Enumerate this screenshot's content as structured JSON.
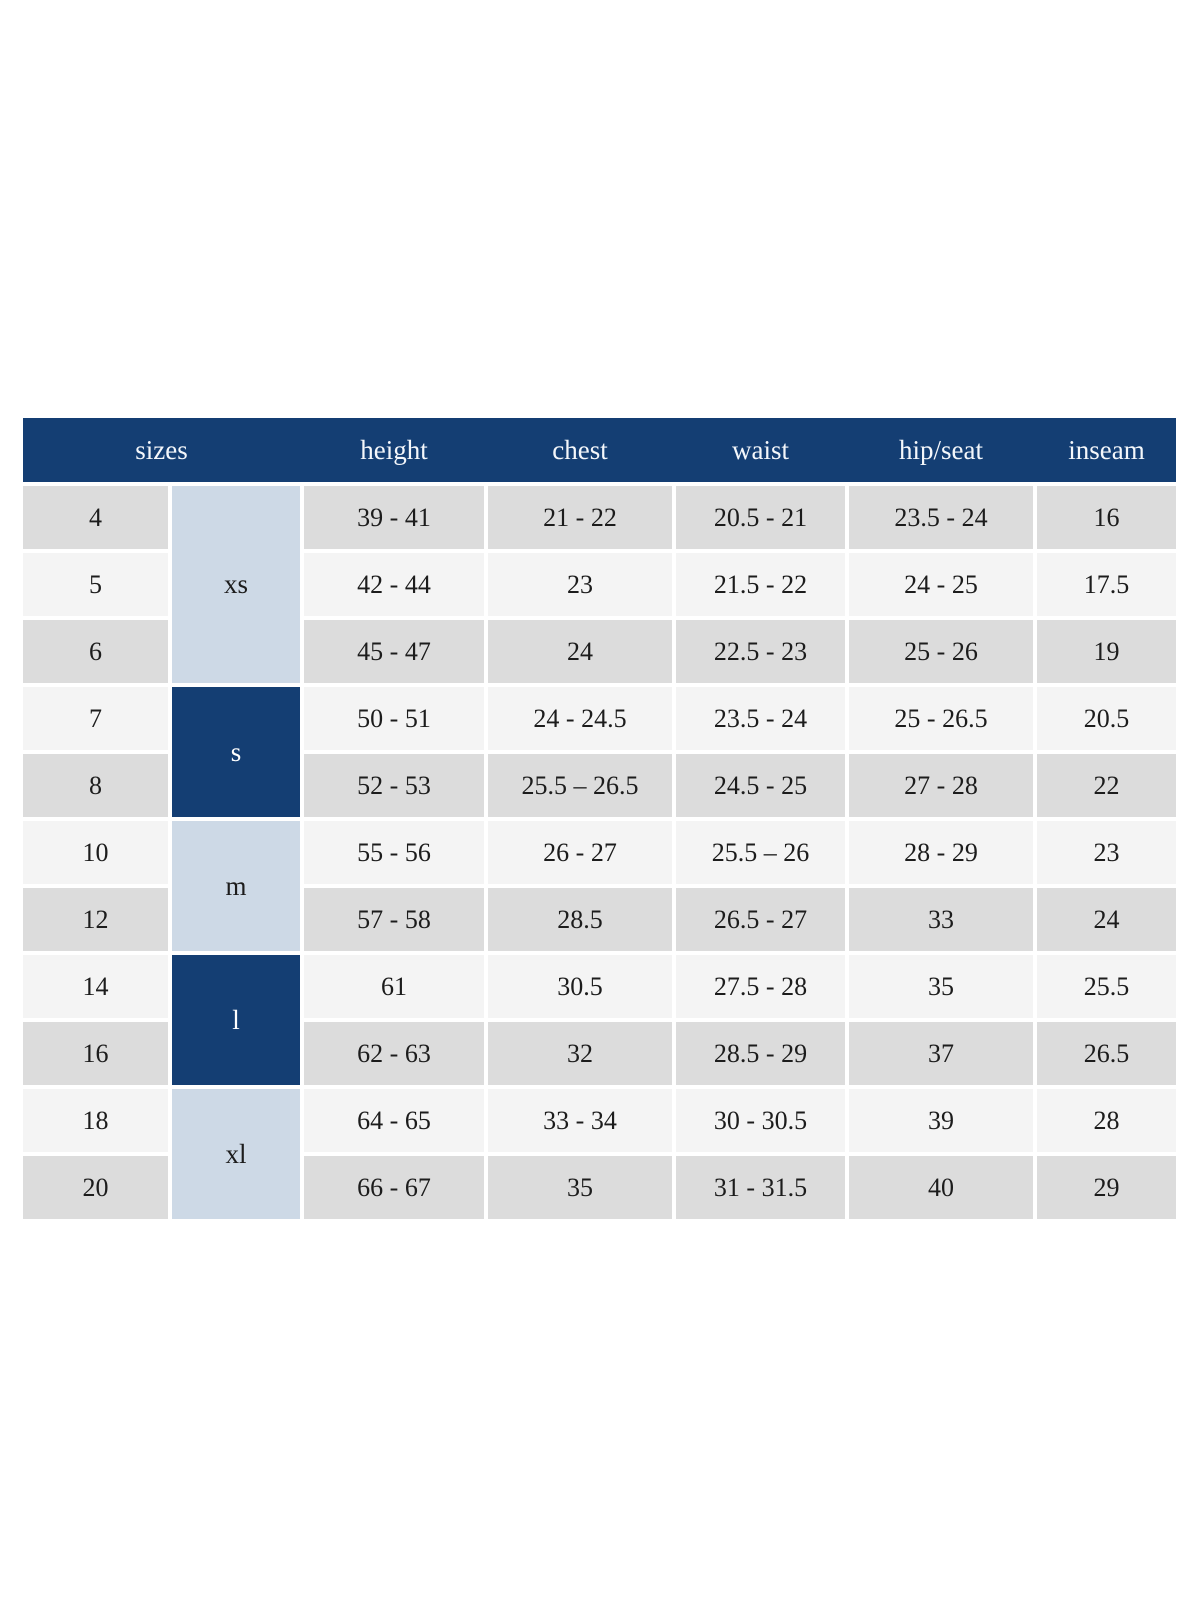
{
  "colors": {
    "header_navy": "#143e73",
    "group_light_blue": "#cdd9e6",
    "row_gray": "#dcdcdc",
    "row_light": "#f4f4f4",
    "body_text": "#1c1c1c",
    "header_text": "#f4f7fb"
  },
  "chart_data": {
    "type": "table",
    "columns": [
      "sizes",
      "height",
      "chest",
      "waist",
      "hip/seat",
      "inseam"
    ],
    "groups": [
      {
        "label": "xs",
        "style": "light",
        "row_span": 3
      },
      {
        "label": "s",
        "style": "dark",
        "row_span": 2
      },
      {
        "label": "m",
        "style": "light",
        "row_span": 2
      },
      {
        "label": "l",
        "style": "dark",
        "row_span": 2
      },
      {
        "label": "xl",
        "style": "light",
        "row_span": 2
      }
    ],
    "rows": [
      {
        "size": "4",
        "height": "39 - 41",
        "chest": "21 - 22",
        "waist": "20.5 - 21",
        "hip_seat": "23.5 - 24",
        "inseam": "16"
      },
      {
        "size": "5",
        "height": "42 - 44",
        "chest": "23",
        "waist": "21.5 - 22",
        "hip_seat": "24 - 25",
        "inseam": "17.5"
      },
      {
        "size": "6",
        "height": "45 - 47",
        "chest": "24",
        "waist": "22.5 - 23",
        "hip_seat": "25 - 26",
        "inseam": "19"
      },
      {
        "size": "7",
        "height": "50 - 51",
        "chest": "24 - 24.5",
        "waist": "23.5 - 24",
        "hip_seat": "25 - 26.5",
        "inseam": "20.5"
      },
      {
        "size": "8",
        "height": "52 - 53",
        "chest": "25.5 – 26.5",
        "waist": "24.5 - 25",
        "hip_seat": "27 - 28",
        "inseam": "22"
      },
      {
        "size": "10",
        "height": "55 - 56",
        "chest": "26 - 27",
        "waist": "25.5 – 26",
        "hip_seat": "28 - 29",
        "inseam": "23"
      },
      {
        "size": "12",
        "height": "57 - 58",
        "chest": "28.5",
        "waist": "26.5 - 27",
        "hip_seat": "33",
        "inseam": "24"
      },
      {
        "size": "14",
        "height": "61",
        "chest": "30.5",
        "waist": "27.5 - 28",
        "hip_seat": "35",
        "inseam": "25.5"
      },
      {
        "size": "16",
        "height": "62 - 63",
        "chest": "32",
        "waist": "28.5 - 29",
        "hip_seat": "37",
        "inseam": "26.5"
      },
      {
        "size": "18",
        "height": "64 - 65",
        "chest": "33 - 34",
        "waist": "30 - 30.5",
        "hip_seat": "39",
        "inseam": "28"
      },
      {
        "size": "20",
        "height": "66 - 67",
        "chest": "35",
        "waist": "31 - 31.5",
        "hip_seat": "40",
        "inseam": "29"
      }
    ]
  }
}
